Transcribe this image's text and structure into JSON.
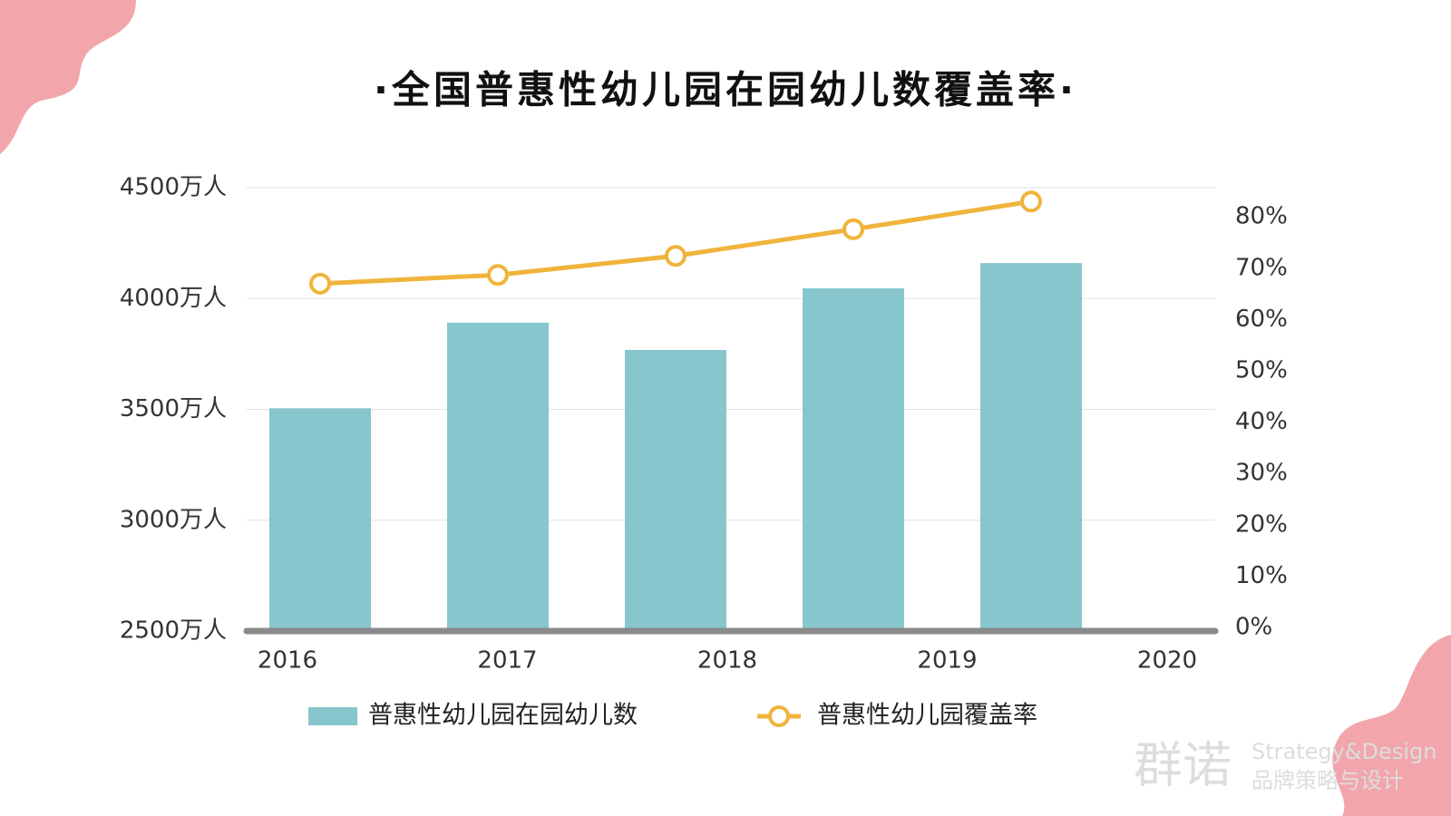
{
  "chart_data": {
    "type": "bar",
    "title": "·全国普惠性幼儿园在园幼儿数覆盖率·",
    "categories": [
      "2016",
      "2017",
      "2018",
      "2019",
      "2020"
    ],
    "series": [
      {
        "name": "普惠性幼儿园在园幼儿数",
        "type": "bar",
        "color": "#86c6cc",
        "values": [
          3505,
          3891,
          3768,
          4046,
          4160
        ]
      },
      {
        "name": "普惠性幼儿园覆盖率",
        "type": "line",
        "axis": "y2",
        "color": "#f0b43c",
        "values": [
          67.7,
          69.4,
          73.1,
          78.3,
          83.7
        ]
      }
    ],
    "ylim": [
      2500,
      4500
    ],
    "yticks": [
      {
        "value": 2500,
        "label": "2500万人"
      },
      {
        "value": 3000,
        "label": "3000万人"
      },
      {
        "value": 3500,
        "label": "3500万人"
      },
      {
        "value": 4000,
        "label": "4000万人"
      },
      {
        "value": 4500,
        "label": "4500万人"
      }
    ],
    "y2lim": [
      0,
      86.4
    ],
    "y2ticks": [
      {
        "value": 0,
        "label": "0%"
      },
      {
        "value": 10,
        "label": "10%"
      },
      {
        "value": 20,
        "label": "20%"
      },
      {
        "value": 30,
        "label": "30%"
      },
      {
        "value": 40,
        "label": "40%"
      },
      {
        "value": 50,
        "label": "50%"
      },
      {
        "value": 60,
        "label": "60%"
      },
      {
        "value": 70,
        "label": "70%"
      },
      {
        "value": 80,
        "label": "80%"
      }
    ],
    "grid": true,
    "legend": "bottom"
  },
  "watermark": {
    "brand": "群诺",
    "tagline": "Strategy&Design",
    "subtitle": "品牌策略与设计"
  }
}
